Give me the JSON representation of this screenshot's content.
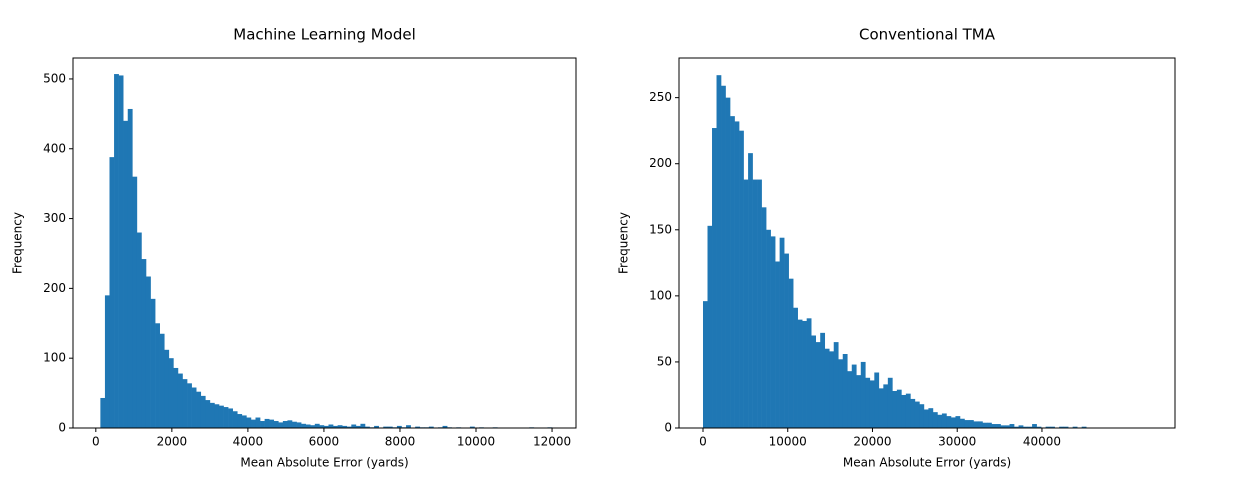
{
  "chart_data": [
    {
      "type": "histogram",
      "title": "Machine Learning Model",
      "x_label": "Mean Absolute Error (yards)",
      "y_label": "Frequency",
      "color": "#1f77b4",
      "bins": [
        0,
        120,
        240,
        360,
        480,
        600,
        720,
        840,
        960,
        1080,
        1200,
        1320,
        1440,
        1560,
        1680,
        1800,
        1920,
        2040,
        2160,
        2280,
        2400,
        2520,
        2640,
        2760,
        2880,
        3000,
        3120,
        3240,
        3360,
        3480,
        3600,
        3720,
        3840,
        3960,
        4080,
        4200,
        4320,
        4440,
        4560,
        4680,
        4800,
        4920,
        5040,
        5160,
        5280,
        5400,
        5520,
        5640,
        5760,
        5880,
        6000,
        6120,
        6240,
        6360,
        6480,
        6600,
        6720,
        6840,
        6960,
        7080,
        7200,
        7320,
        7440,
        7560,
        7680,
        7800,
        7920,
        8040,
        8160,
        8280,
        8400,
        8520,
        8640,
        8760,
        8880,
        9000,
        9120,
        9240,
        9360,
        9480,
        9600,
        9720,
        9840,
        9960,
        10080,
        10200,
        10320,
        10440,
        10560,
        10680,
        10800,
        10920,
        11040,
        11160,
        11280,
        11400,
        11520,
        11640,
        11760,
        11880,
        12000
      ],
      "values": [
        0,
        43,
        190,
        388,
        507,
        505,
        440,
        457,
        360,
        280,
        242,
        217,
        185,
        150,
        135,
        112,
        100,
        86,
        78,
        70,
        64,
        58,
        52,
        46,
        40,
        36,
        34,
        32,
        30,
        28,
        24,
        20,
        18,
        15,
        12,
        15,
        10,
        13,
        12,
        10,
        8,
        10,
        11,
        9,
        8,
        6,
        5,
        4,
        6,
        4,
        3,
        5,
        3,
        4,
        3,
        2,
        5,
        3,
        6,
        2,
        1,
        3,
        0,
        2,
        2,
        1,
        3,
        1,
        4,
        0,
        2,
        1,
        1,
        2,
        0,
        1,
        3,
        1,
        0,
        1,
        0,
        0,
        2,
        0,
        1,
        0,
        0,
        1,
        0,
        0,
        0,
        0,
        0,
        0,
        0,
        1,
        0,
        0,
        0,
        1
      ],
      "xlim": [
        -600,
        12630
      ],
      "ylim": [
        0,
        530
      ],
      "xticks": [
        0,
        2000,
        4000,
        6000,
        8000,
        10000,
        12000
      ],
      "yticks": [
        0,
        100,
        200,
        300,
        400,
        500
      ]
    },
    {
      "type": "histogram",
      "title": "Conventional TMA",
      "x_label": "Mean Absolute Error (yards)",
      "y_label": "Frequency",
      "color": "#1f77b4",
      "bins": [
        0,
        532,
        1064,
        1596,
        2128,
        2660,
        3192,
        3724,
        4256,
        4788,
        5320,
        5852,
        6384,
        6916,
        7448,
        7980,
        8512,
        9044,
        9576,
        10108,
        10640,
        11172,
        11704,
        12236,
        12768,
        13300,
        13832,
        14364,
        14896,
        15428,
        15960,
        16492,
        17024,
        17556,
        18088,
        18620,
        19152,
        19684,
        20216,
        20748,
        21280,
        21812,
        22344,
        22876,
        23408,
        23940,
        24472,
        25004,
        25536,
        26068,
        26600,
        27132,
        27664,
        28196,
        28728,
        29260,
        29792,
        30324,
        30856,
        31388,
        31920,
        32452,
        32984,
        33516,
        34048,
        34580,
        35112,
        35644,
        36176,
        36708,
        37240,
        37772,
        38304,
        38836,
        39368,
        39900,
        40432,
        40964,
        41496,
        42028,
        42560,
        43092,
        43624,
        44156,
        44688,
        45220,
        45752,
        46284,
        46816,
        47348,
        47880,
        48412,
        48944,
        49476,
        50008,
        50540,
        51072,
        51604,
        52136,
        52668,
        53200
      ],
      "values": [
        96,
        153,
        227,
        267,
        259,
        250,
        236,
        232,
        225,
        188,
        208,
        188,
        188,
        167,
        150,
        145,
        126,
        144,
        132,
        113,
        91,
        82,
        81,
        83,
        70,
        65,
        72,
        60,
        58,
        65,
        52,
        56,
        43,
        48,
        40,
        50,
        38,
        36,
        42,
        30,
        33,
        38,
        28,
        29,
        25,
        26,
        22,
        20,
        18,
        14,
        15,
        12,
        10,
        11,
        9,
        8,
        9,
        7,
        6,
        6,
        5,
        5,
        4,
        4,
        3,
        3,
        2,
        2,
        3,
        1,
        2,
        1,
        1,
        3,
        1,
        0,
        1,
        1,
        0,
        1,
        1,
        0,
        1,
        0,
        1,
        0,
        0,
        0,
        0,
        0,
        0,
        0,
        0,
        0,
        0,
        0,
        0,
        0,
        0,
        0
      ],
      "xlim": [
        -2832,
        55700
      ],
      "ylim": [
        0,
        280
      ],
      "xticks": [
        0,
        10000,
        20000,
        30000,
        40000
      ],
      "yticks": [
        0,
        50,
        100,
        150,
        200,
        250
      ]
    }
  ]
}
